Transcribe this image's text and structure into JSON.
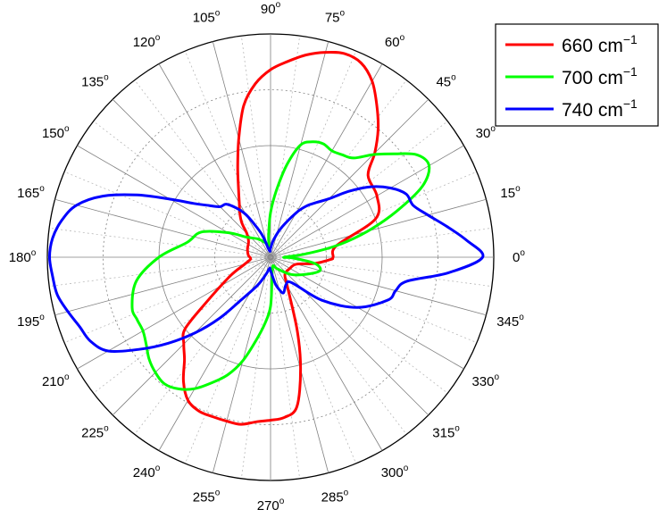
{
  "chart_data": {
    "type": "polar-line",
    "angle_unit": "degrees",
    "angle_ticks": [
      {
        "deg": 0,
        "label": "0",
        "sup": "o"
      },
      {
        "deg": 15,
        "label": "15",
        "sup": "o"
      },
      {
        "deg": 30,
        "label": "30",
        "sup": "o"
      },
      {
        "deg": 45,
        "label": "45",
        "sup": "o"
      },
      {
        "deg": 60,
        "label": "60",
        "sup": "o"
      },
      {
        "deg": 75,
        "label": "75",
        "sup": "o"
      },
      {
        "deg": 90,
        "label": "90",
        "sup": "o"
      },
      {
        "deg": 105,
        "label": "105",
        "sup": "o"
      },
      {
        "deg": 120,
        "label": "120",
        "sup": "o"
      },
      {
        "deg": 135,
        "label": "135",
        "sup": "o"
      },
      {
        "deg": 150,
        "label": "150",
        "sup": "o"
      },
      {
        "deg": 165,
        "label": "165",
        "sup": "o"
      },
      {
        "deg": 180,
        "label": "180",
        "sup": "o"
      },
      {
        "deg": 195,
        "label": "195",
        "sup": "o"
      },
      {
        "deg": 210,
        "label": "210",
        "sup": "o"
      },
      {
        "deg": 225,
        "label": "225",
        "sup": "o"
      },
      {
        "deg": 240,
        "label": "240",
        "sup": "o"
      },
      {
        "deg": 255,
        "label": "255",
        "sup": "o"
      },
      {
        "deg": 270,
        "label": "270",
        "sup": "o"
      },
      {
        "deg": 285,
        "label": "285",
        "sup": "o"
      },
      {
        "deg": 300,
        "label": "300",
        "sup": "o"
      },
      {
        "deg": 315,
        "label": "315",
        "sup": "o"
      },
      {
        "deg": 330,
        "label": "330",
        "sup": "o"
      },
      {
        "deg": 345,
        "label": "345",
        "sup": "o"
      }
    ],
    "radial_range": [
      0,
      1
    ],
    "radial_rings": [
      0.25,
      0.5,
      0.75,
      1.0
    ],
    "radial_tick_labels_shown": false,
    "grid": true,
    "legend_position": "top-right",
    "series": [
      {
        "name": "660 cm",
        "name_sup": "−1",
        "color": "#ff0000",
        "points": [
          [
            0,
            0.28
          ],
          [
            10,
            0.3
          ],
          [
            20,
            0.5
          ],
          [
            30,
            0.55
          ],
          [
            40,
            0.57
          ],
          [
            45,
            0.66
          ],
          [
            50,
            0.75
          ],
          [
            55,
            0.83
          ],
          [
            60,
            0.91
          ],
          [
            65,
            0.96
          ],
          [
            70,
            0.97
          ],
          [
            75,
            0.95
          ],
          [
            80,
            0.92
          ],
          [
            85,
            0.88
          ],
          [
            90,
            0.84
          ],
          [
            95,
            0.78
          ],
          [
            100,
            0.69
          ],
          [
            105,
            0.55
          ],
          [
            110,
            0.43
          ],
          [
            115,
            0.34
          ],
          [
            120,
            0.28
          ],
          [
            125,
            0.24
          ],
          [
            130,
            0.2
          ],
          [
            135,
            0.15
          ],
          [
            145,
            0.12
          ],
          [
            160,
            0.11
          ],
          [
            175,
            0.1
          ],
          [
            185,
            0.09
          ],
          [
            195,
            0.12
          ],
          [
            205,
            0.2
          ],
          [
            215,
            0.35
          ],
          [
            220,
            0.5
          ],
          [
            225,
            0.55
          ],
          [
            230,
            0.6
          ],
          [
            235,
            0.68
          ],
          [
            240,
            0.74
          ],
          [
            245,
            0.76
          ],
          [
            250,
            0.76
          ],
          [
            255,
            0.76
          ],
          [
            260,
            0.76
          ],
          [
            265,
            0.74
          ],
          [
            270,
            0.73
          ],
          [
            275,
            0.72
          ],
          [
            280,
            0.68
          ],
          [
            285,
            0.52
          ],
          [
            290,
            0.35
          ],
          [
            300,
            0.15
          ],
          [
            310,
            0.1
          ],
          [
            330,
            0.1
          ],
          [
            345,
            0.12
          ],
          [
            352,
            0.2
          ],
          [
            358,
            0.27
          ]
        ]
      },
      {
        "name": "700 cm",
        "name_sup": "−1",
        "color": "#00ff00",
        "points": [
          [
            0,
            0.06
          ],
          [
            5,
            0.15
          ],
          [
            10,
            0.3
          ],
          [
            15,
            0.45
          ],
          [
            20,
            0.6
          ],
          [
            25,
            0.75
          ],
          [
            30,
            0.82
          ],
          [
            35,
            0.8
          ],
          [
            40,
            0.72
          ],
          [
            45,
            0.65
          ],
          [
            50,
            0.58
          ],
          [
            55,
            0.56
          ],
          [
            60,
            0.55
          ],
          [
            65,
            0.56
          ],
          [
            70,
            0.55
          ],
          [
            75,
            0.52
          ],
          [
            80,
            0.42
          ],
          [
            85,
            0.3
          ],
          [
            90,
            0.2
          ],
          [
            95,
            0.1
          ],
          [
            100,
            0.05
          ],
          [
            110,
            0.07
          ],
          [
            125,
            0.1
          ],
          [
            140,
            0.14
          ],
          [
            150,
            0.22
          ],
          [
            160,
            0.33
          ],
          [
            170,
            0.38
          ],
          [
            180,
            0.5
          ],
          [
            190,
            0.61
          ],
          [
            200,
            0.66
          ],
          [
            205,
            0.66
          ],
          [
            210,
            0.66
          ],
          [
            215,
            0.68
          ],
          [
            220,
            0.71
          ],
          [
            225,
            0.73
          ],
          [
            230,
            0.74
          ],
          [
            235,
            0.72
          ],
          [
            240,
            0.68
          ],
          [
            245,
            0.62
          ],
          [
            250,
            0.56
          ],
          [
            255,
            0.48
          ],
          [
            260,
            0.38
          ],
          [
            265,
            0.3
          ],
          [
            270,
            0.22
          ],
          [
            275,
            0.08
          ],
          [
            285,
            0.04
          ],
          [
            300,
            0.06
          ],
          [
            320,
            0.12
          ],
          [
            335,
            0.18
          ],
          [
            345,
            0.23
          ],
          [
            352,
            0.2
          ],
          [
            358,
            0.1
          ]
        ]
      },
      {
        "name": "740 cm",
        "name_sup": "−1",
        "color": "#0000ff",
        "points": [
          [
            0,
            0.95
          ],
          [
            5,
            0.88
          ],
          [
            10,
            0.8
          ],
          [
            15,
            0.73
          ],
          [
            20,
            0.68
          ],
          [
            25,
            0.67
          ],
          [
            30,
            0.62
          ],
          [
            35,
            0.55
          ],
          [
            40,
            0.46
          ],
          [
            45,
            0.37
          ],
          [
            50,
            0.32
          ],
          [
            55,
            0.28
          ],
          [
            60,
            0.23
          ],
          [
            70,
            0.14
          ],
          [
            80,
            0.08
          ],
          [
            90,
            0.04
          ],
          [
            100,
            0.03
          ],
          [
            110,
            0.1
          ],
          [
            115,
            0.15
          ],
          [
            120,
            0.22
          ],
          [
            125,
            0.27
          ],
          [
            130,
            0.31
          ],
          [
            135,
            0.32
          ],
          [
            140,
            0.36
          ],
          [
            145,
            0.42
          ],
          [
            150,
            0.52
          ],
          [
            155,
            0.66
          ],
          [
            160,
            0.8
          ],
          [
            165,
            0.9
          ],
          [
            170,
            0.95
          ],
          [
            175,
            0.98
          ],
          [
            180,
            0.99
          ],
          [
            185,
            0.98
          ],
          [
            190,
            0.97
          ],
          [
            195,
            0.94
          ],
          [
            200,
            0.91
          ],
          [
            205,
            0.89
          ],
          [
            210,
            0.84
          ],
          [
            215,
            0.72
          ],
          [
            220,
            0.6
          ],
          [
            225,
            0.48
          ],
          [
            230,
            0.36
          ],
          [
            235,
            0.24
          ],
          [
            245,
            0.14
          ],
          [
            255,
            0.08
          ],
          [
            265,
            0.05
          ],
          [
            270,
            0.06
          ],
          [
            280,
            0.12
          ],
          [
            285,
            0.15
          ],
          [
            290,
            0.17
          ],
          [
            300,
            0.14
          ],
          [
            310,
            0.15
          ],
          [
            320,
            0.3
          ],
          [
            330,
            0.45
          ],
          [
            340,
            0.56
          ],
          [
            345,
            0.58
          ],
          [
            350,
            0.62
          ],
          [
            355,
            0.8
          ]
        ]
      }
    ]
  }
}
